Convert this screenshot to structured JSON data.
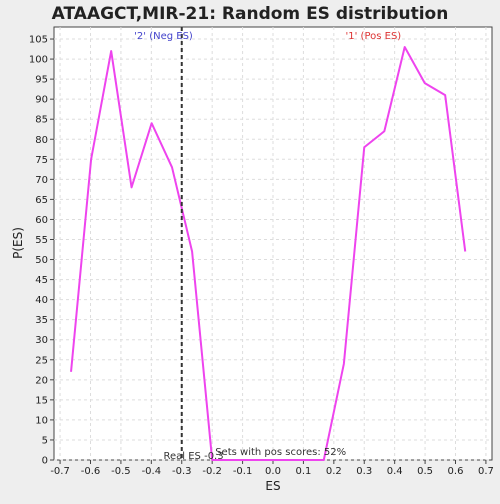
{
  "chart_data": {
    "type": "line",
    "title": "ATAAGCT,MIR-21: Random ES distribution",
    "xlabel": "ES",
    "ylabel": "P(ES)",
    "xlim": [
      -0.72,
      0.72
    ],
    "ylim": [
      0,
      108
    ],
    "xticks": [
      -0.7,
      -0.6,
      -0.5,
      -0.4,
      -0.3,
      -0.2,
      -0.1,
      0.0,
      0.1,
      0.2,
      0.3,
      0.4,
      0.5,
      0.6,
      0.7
    ],
    "xtick_labels": [
      "-0.7",
      "-0.6",
      "-0.5",
      "-0.4",
      "-0.3",
      "-0.2",
      "-0.1",
      "0.0",
      "0.1",
      "0.2",
      "0.3",
      "0.4",
      "0.5",
      "0.6",
      "0.7"
    ],
    "yticks": [
      0,
      5,
      10,
      15,
      20,
      25,
      30,
      35,
      40,
      45,
      50,
      55,
      60,
      65,
      70,
      75,
      80,
      85,
      90,
      95,
      100,
      105
    ],
    "ytick_labels": [
      "0",
      "5",
      "10",
      "15",
      "20",
      "25",
      "30",
      "35",
      "40",
      "45",
      "50",
      "55",
      "60",
      "65",
      "70",
      "75",
      "80",
      "85",
      "90",
      "95",
      "100",
      "105"
    ],
    "grid": true,
    "series": [
      {
        "color": "#ee44ee",
        "x": [
          -0.664,
          -0.598,
          -0.532,
          -0.465,
          -0.399,
          -0.332,
          -0.266,
          -0.2,
          0.0,
          0.1,
          0.167,
          0.233,
          0.3,
          0.366,
          0.433,
          0.499,
          0.566,
          0.632
        ],
        "y": [
          22,
          75,
          102,
          68,
          84,
          73,
          52,
          0,
          0,
          0,
          0,
          24,
          78,
          82,
          103,
          94,
          91,
          52
        ]
      }
    ],
    "real_es": -0.3,
    "annotations": {
      "neg_label": "'2' (Neg ES)",
      "pos_label": "'1' (Pos ES)",
      "real_es_label": "Real ES -0.3",
      "pos_scores_label": "Sets with pos scores: 52%"
    },
    "colors": {
      "line": "#ee44ee",
      "neg_label": "#4444cc",
      "pos_label": "#dd3333",
      "marker": "#333333",
      "grid": "#dddddd"
    }
  }
}
